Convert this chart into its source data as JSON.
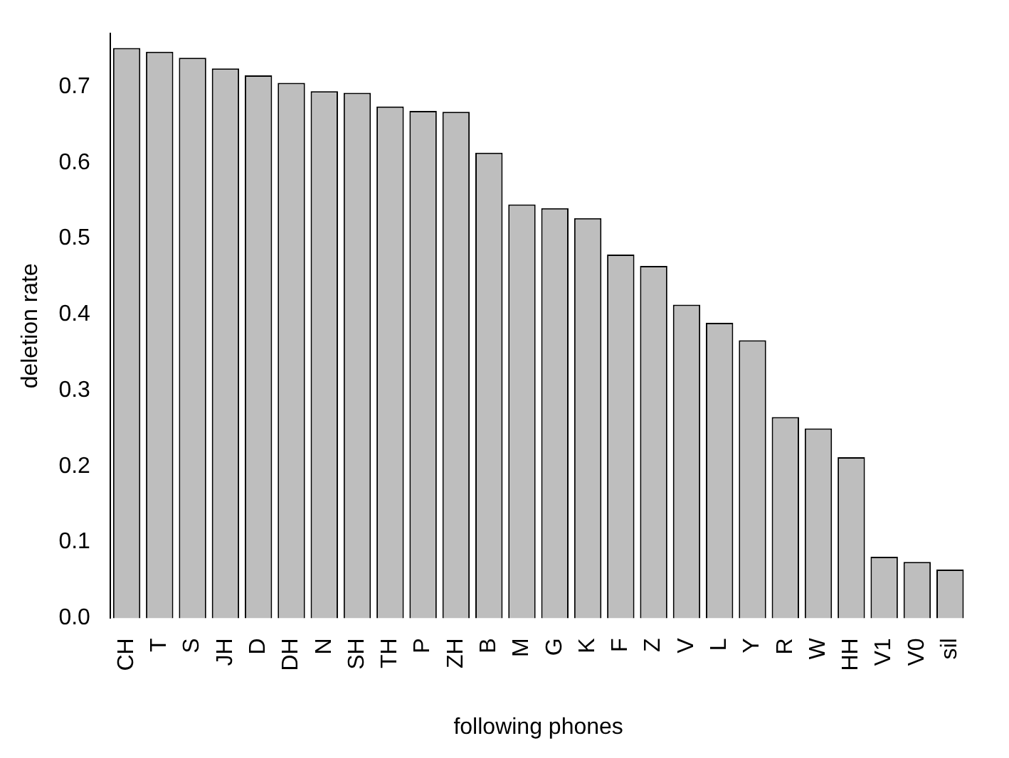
{
  "chart_data": {
    "type": "bar",
    "xlabel": "following phones",
    "ylabel": "deletion rate",
    "categories": [
      "CH",
      "T",
      "S",
      "JH",
      "D",
      "DH",
      "N",
      "SH",
      "TH",
      "P",
      "ZH",
      "B",
      "M",
      "G",
      "K",
      "F",
      "Z",
      "V",
      "L",
      "Y",
      "R",
      "W",
      "HH",
      "V1",
      "V0",
      "sil"
    ],
    "values": [
      0.751,
      0.746,
      0.738,
      0.724,
      0.715,
      0.705,
      0.694,
      0.692,
      0.674,
      0.668,
      0.667,
      0.613,
      0.545,
      0.54,
      0.527,
      0.479,
      0.464,
      0.413,
      0.389,
      0.366,
      0.265,
      0.25,
      0.212,
      0.081,
      0.074,
      0.064
    ],
    "color": "#bebebe",
    "ylim": [
      0,
      0.77
    ],
    "yticks": [
      {
        "value": 0,
        "label": "0.0"
      },
      {
        "value": 0.1,
        "label": "0.1"
      },
      {
        "value": 0.2,
        "label": "0.2"
      },
      {
        "value": 0.3,
        "label": "0.3"
      },
      {
        "value": 0.4,
        "label": "0.4"
      },
      {
        "value": 0.5,
        "label": "0.5"
      },
      {
        "value": 0.6,
        "label": "0.6"
      },
      {
        "value": 0.7,
        "label": "0.7"
      }
    ],
    "grid": false,
    "legend": false
  }
}
